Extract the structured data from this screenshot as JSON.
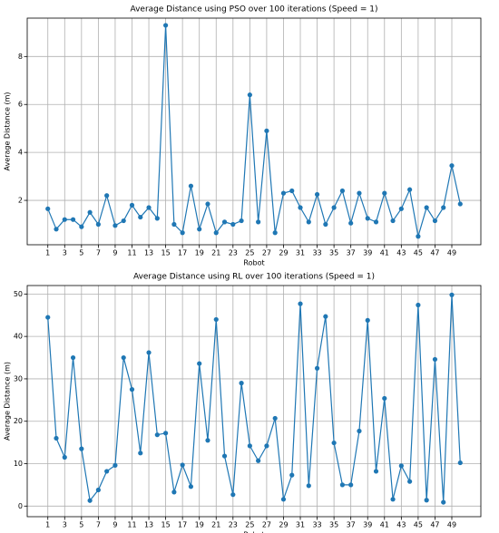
{
  "chart_data": [
    {
      "type": "line",
      "title": "Average Distance using PSO over 100 iterations (Speed = 1)",
      "xlabel": "Robot",
      "ylabel": "Average Distance (m)",
      "x": [
        1,
        2,
        3,
        4,
        5,
        6,
        7,
        8,
        9,
        10,
        11,
        12,
        13,
        14,
        15,
        16,
        17,
        18,
        19,
        20,
        21,
        22,
        23,
        24,
        25,
        26,
        27,
        28,
        29,
        30,
        31,
        32,
        33,
        34,
        35,
        36,
        37,
        38,
        39,
        40,
        41,
        42,
        43,
        44,
        45,
        46,
        47,
        48,
        49,
        50
      ],
      "series": [
        {
          "name": "PSO",
          "color": "#1f77b4",
          "values": [
            1.65,
            0.8,
            1.2,
            1.2,
            0.9,
            1.5,
            1.0,
            2.2,
            0.95,
            1.15,
            1.8,
            1.3,
            1.7,
            1.25,
            9.3,
            1.0,
            0.65,
            2.6,
            0.8,
            1.85,
            0.65,
            1.1,
            1.0,
            1.15,
            6.4,
            1.1,
            4.9,
            0.65,
            2.3,
            2.4,
            1.7,
            1.1,
            2.25,
            1.0,
            1.7,
            2.4,
            1.05,
            2.3,
            1.25,
            1.1,
            2.3,
            1.15,
            1.65,
            2.45,
            0.5,
            1.7,
            1.15,
            1.7,
            3.45,
            1.85
          ]
        }
      ],
      "xlim": [
        -1.45,
        52.45
      ],
      "xticks": [
        1,
        3,
        5,
        7,
        9,
        11,
        13,
        15,
        17,
        19,
        21,
        23,
        25,
        27,
        29,
        31,
        33,
        35,
        37,
        39,
        41,
        43,
        45,
        47,
        49
      ],
      "ylim": [
        0.15,
        9.6
      ],
      "yticks": [
        2,
        4,
        6,
        8
      ],
      "grid": true
    },
    {
      "type": "line",
      "title": "Average Distance using RL over 100 iterations (Speed = 1)",
      "xlabel": "Robot",
      "ylabel": "Average Distance (m)",
      "x": [
        1,
        2,
        3,
        4,
        5,
        6,
        7,
        8,
        9,
        10,
        11,
        12,
        13,
        14,
        15,
        16,
        17,
        18,
        19,
        20,
        21,
        22,
        23,
        24,
        25,
        26,
        27,
        28,
        29,
        30,
        31,
        32,
        33,
        34,
        35,
        36,
        37,
        38,
        39,
        40,
        41,
        42,
        43,
        44,
        45,
        46,
        47,
        48,
        49,
        50
      ],
      "series": [
        {
          "name": "RL",
          "color": "#1f77b4",
          "values": [
            44.5,
            16,
            11.5,
            35,
            13.5,
            1.3,
            3.8,
            8.2,
            9.6,
            35,
            27.5,
            12.5,
            36.2,
            16.8,
            17.2,
            3.3,
            9.7,
            4.6,
            33.6,
            15.5,
            44,
            11.8,
            2.7,
            29,
            14.2,
            10.7,
            14.2,
            20.7,
            1.6,
            7.3,
            47.7,
            4.8,
            32.5,
            44.7,
            14.9,
            5,
            5,
            17.7,
            43.8,
            8.2,
            25.4,
            1.6,
            9.5,
            5.8,
            47.4,
            1.4,
            34.6,
            0.9,
            49.8,
            10.2
          ]
        }
      ],
      "xlim": [
        -1.45,
        52.45
      ],
      "xticks": [
        1,
        3,
        5,
        7,
        9,
        11,
        13,
        15,
        17,
        19,
        21,
        23,
        25,
        27,
        29,
        31,
        33,
        35,
        37,
        39,
        41,
        43,
        45,
        47,
        49
      ],
      "ylim": [
        -2.5,
        52
      ],
      "yticks": [
        0,
        10,
        20,
        30,
        40,
        50
      ],
      "grid": true
    }
  ]
}
